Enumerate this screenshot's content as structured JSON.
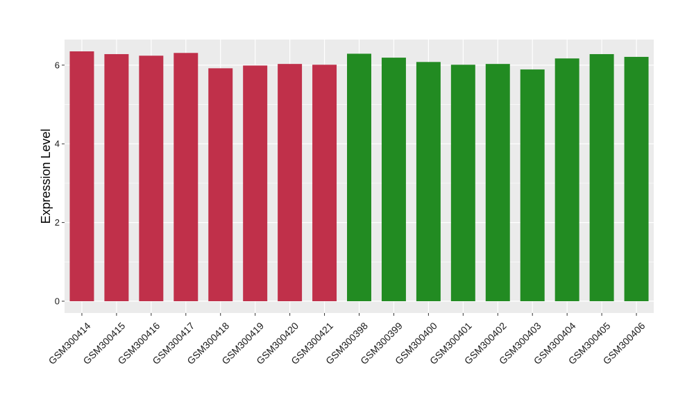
{
  "chart_data": {
    "type": "bar",
    "title": "",
    "xlabel": "",
    "ylabel": "Expression Level",
    "ylim": [
      -0.3,
      6.65
    ],
    "yticks": [
      0,
      2,
      4,
      6
    ],
    "grid": true,
    "legend": "none",
    "background": "#EBEBEB",
    "gridline_color": "#FFFFFF",
    "categories": [
      "GSM300414",
      "GSM300415",
      "GSM300416",
      "GSM300417",
      "GSM300418",
      "GSM300419",
      "GSM300420",
      "GSM300421",
      "GSM300398",
      "GSM300399",
      "GSM300400",
      "GSM300401",
      "GSM300402",
      "GSM300403",
      "GSM300404",
      "GSM300405",
      "GSM300406"
    ],
    "values": [
      6.35,
      6.28,
      6.24,
      6.31,
      5.92,
      5.99,
      6.03,
      6.01,
      6.29,
      6.19,
      6.08,
      6.01,
      6.03,
      5.89,
      6.17,
      6.28,
      6.21
    ],
    "groups": [
      "red",
      "red",
      "red",
      "red",
      "red",
      "red",
      "red",
      "red",
      "green",
      "green",
      "green",
      "green",
      "green",
      "green",
      "green",
      "green",
      "green"
    ],
    "colors": {
      "red": "#C0304A",
      "green": "#228B22"
    }
  }
}
